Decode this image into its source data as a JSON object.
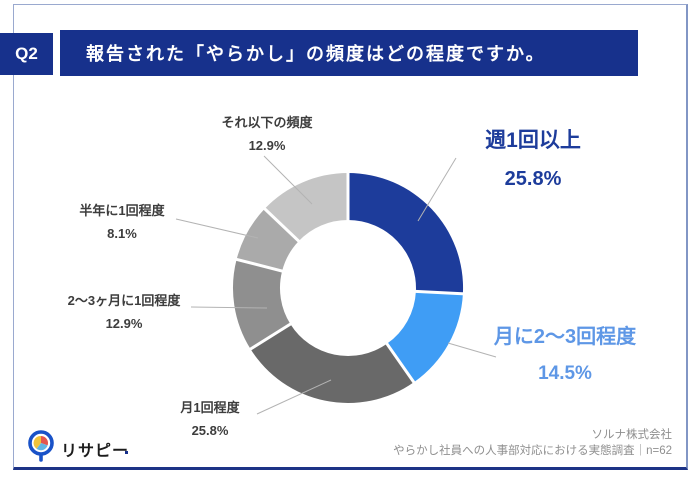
{
  "page": {
    "question_tag": "Q2",
    "title": "報告された「やらかし」の頻度はどの程度ですか。"
  },
  "chart_data": {
    "type": "pie",
    "variant": "donut",
    "title": "報告された「やらかし」の頻度はどの程度ですか。",
    "unit": "%",
    "start_angle": "top",
    "direction": "clockwise",
    "inner_radius_ratio": 0.59,
    "segments": [
      {
        "label": "週1回以上",
        "value": 25.8,
        "display": "25.8%",
        "color": "#1d3c9b"
      },
      {
        "label": "月に2〜3回程度",
        "value": 14.5,
        "display": "14.5%",
        "color": "#3f9df5"
      },
      {
        "label": "月1回程度",
        "value": 25.8,
        "display": "25.8%",
        "color": "#696969"
      },
      {
        "label": "2〜3ヶ月に1回程度",
        "value": 12.9,
        "display": "12.9%",
        "color": "#8f8f8f"
      },
      {
        "label": "半年に1回程度",
        "value": 8.1,
        "display": "8.1%",
        "color": "#aaaaaa"
      },
      {
        "label": "それ以下の頻度",
        "value": 12.9,
        "display": "12.9%",
        "color": "#c5c5c5"
      }
    ]
  },
  "footer": {
    "logo_text": "リサピー",
    "company": "ソルナ株式会社",
    "survey": "やらかし社員への人事部対応における実態調査｜n=62"
  },
  "colors": {
    "header_bg": "#17318c",
    "primary_label": "#1d3c9b",
    "secondary_label": "#5e97e6",
    "border_bottom": "#1d3386",
    "leader_line": "#b3b3b3"
  }
}
